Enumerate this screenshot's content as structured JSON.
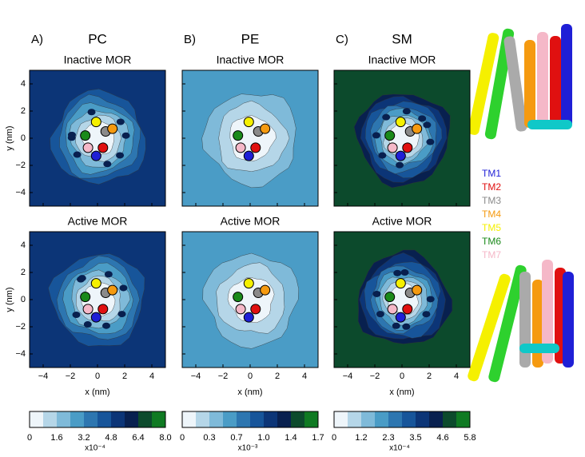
{
  "columns": [
    {
      "label": "A)",
      "lipid": "PC",
      "panels": [
        "Inactive MOR",
        "Active MOR"
      ],
      "colorbar": {
        "ticks": [
          "0",
          "1.6",
          "3.2",
          "4.8",
          "6.4",
          "8.0"
        ],
        "scale": "x10⁻⁴"
      },
      "background_level": 6
    },
    {
      "label": "B)",
      "lipid": "PE",
      "panels": [
        "Inactive MOR",
        "Active MOR"
      ],
      "colorbar": {
        "ticks": [
          "0",
          "0.3",
          "0.7",
          "1.0",
          "1.4",
          "1.7"
        ],
        "scale": "x10⁻³"
      },
      "background_level": 3
    },
    {
      "label": "C)",
      "lipid": "SM",
      "panels": [
        "Inactive MOR",
        "Active MOR"
      ],
      "colorbar": {
        "ticks": [
          "0",
          "1.2",
          "2.3",
          "3.5",
          "4.6",
          "5.8"
        ],
        "scale": "x10⁻⁴"
      },
      "background_level": 8
    }
  ],
  "axes": {
    "x_label": "x (nm)",
    "y_label": "y (nm)",
    "ticks": [
      "−4",
      "−2",
      "0",
      "2",
      "4"
    ]
  },
  "colorbar_colors": [
    "#eef5fa",
    "#b5d6e8",
    "#7fbad9",
    "#4a9cc6",
    "#2d76b0",
    "#17559a",
    "#0c3577",
    "#08204f",
    "#0c4a2c",
    "#0f7a22"
  ],
  "legend": [
    {
      "name": "TM1",
      "color": "#1f1fd6"
    },
    {
      "name": "TM2",
      "color": "#e01010"
    },
    {
      "name": "TM3",
      "color": "#8a8a8a"
    },
    {
      "name": "TM4",
      "color": "#f59a10"
    },
    {
      "name": "TM5",
      "color": "#f5f000"
    },
    {
      "name": "TM6",
      "color": "#1a8a1a"
    },
    {
      "name": "TM7",
      "color": "#f5b8c8"
    }
  ]
}
